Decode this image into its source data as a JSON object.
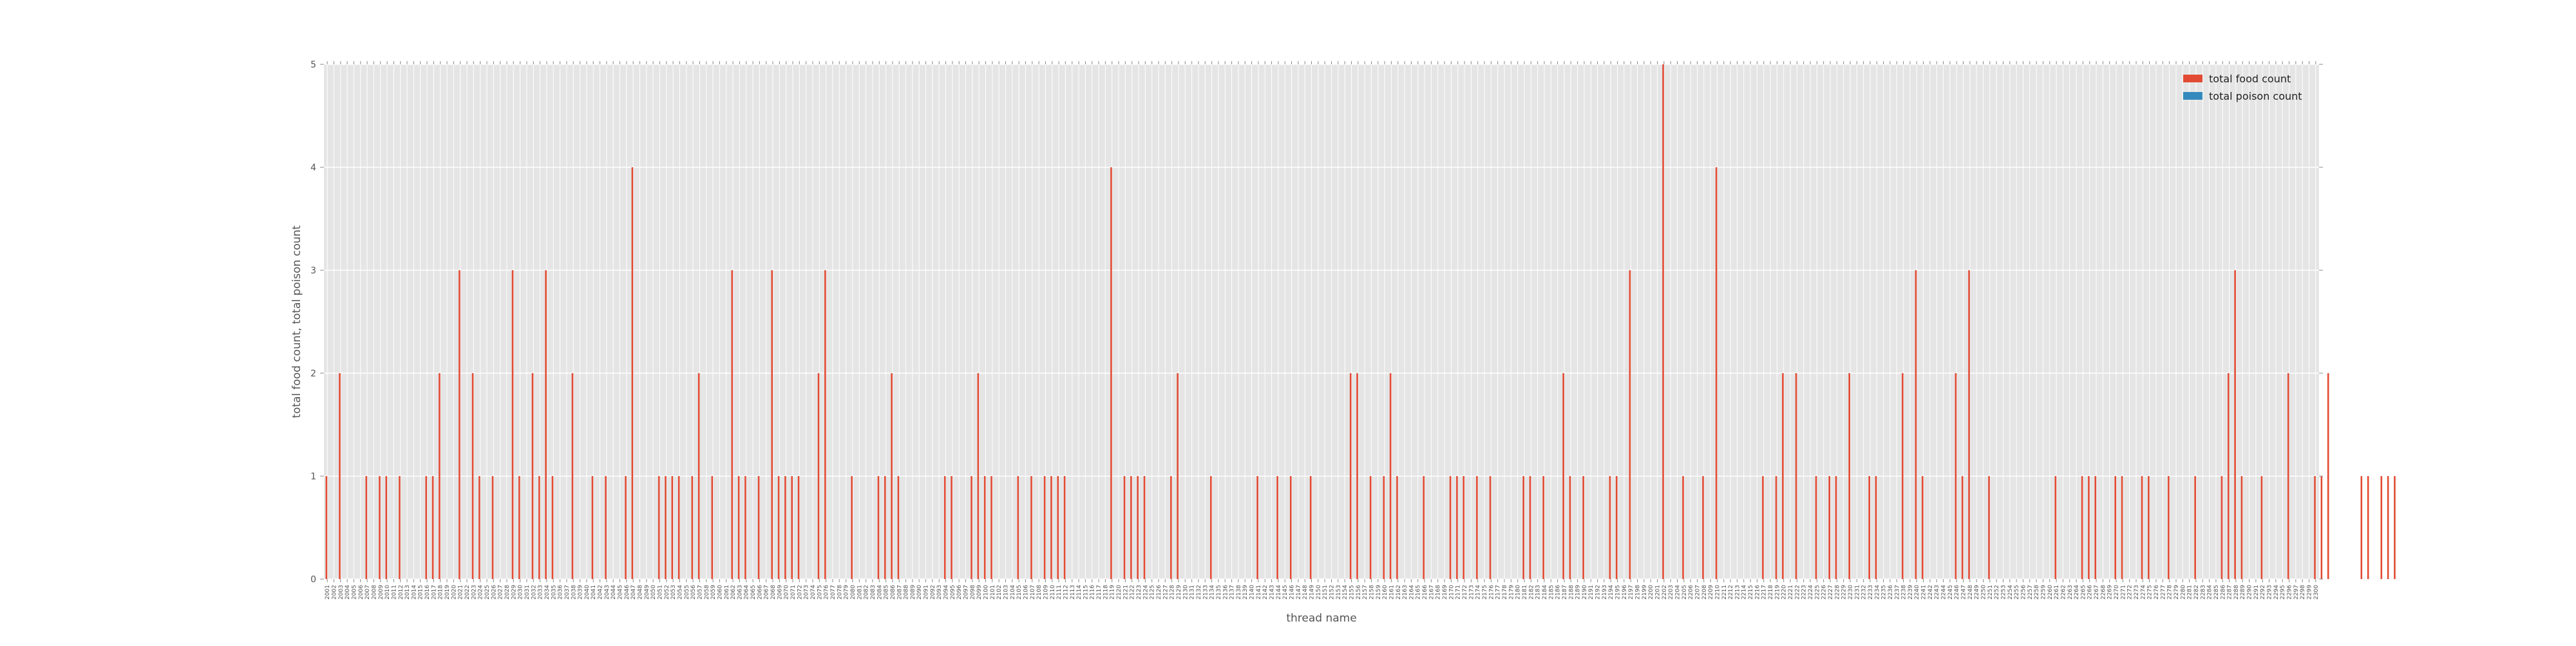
{
  "chart_data": {
    "type": "bar",
    "xlabel": "thread name",
    "ylabel": "total food count, total poison count",
    "ylim": [
      0,
      5
    ],
    "yticks": [
      0,
      1,
      2,
      3,
      4,
      5
    ],
    "grid": true,
    "legend_position": "top-right",
    "colors": {
      "plot_background": "#e5e5e5",
      "grid": "#ffffff",
      "food": "#e24a33",
      "poison": "#348abd"
    },
    "category_start": 2001,
    "category_count": 300,
    "series": [
      {
        "name": "total food count",
        "color": "#e24a33",
        "values": [
          1,
          0,
          2,
          0,
          0,
          0,
          1,
          0,
          1,
          1,
          0,
          1,
          0,
          0,
          0,
          1,
          1,
          2,
          0,
          0,
          3,
          0,
          2,
          1,
          0,
          1,
          0,
          0,
          3,
          1,
          0,
          2,
          1,
          3,
          1,
          0,
          0,
          2,
          0,
          0,
          1,
          0,
          1,
          0,
          0,
          1,
          4,
          0,
          0,
          0,
          1,
          1,
          1,
          1,
          0,
          1,
          2,
          0,
          1,
          0,
          0,
          3,
          1,
          1,
          0,
          1,
          0,
          3,
          1,
          1,
          1,
          1,
          0,
          0,
          2,
          3,
          0,
          0,
          0,
          1,
          0,
          0,
          0,
          1,
          1,
          2,
          1,
          0,
          0,
          0,
          0,
          0,
          0,
          1,
          1,
          0,
          0,
          1,
          2,
          1,
          1,
          0,
          0,
          0,
          1,
          0,
          1,
          0,
          1,
          1,
          1,
          1,
          0,
          0,
          0,
          0,
          0,
          0,
          4,
          0,
          1,
          1,
          1,
          1,
          0,
          0,
          0,
          1,
          2,
          0,
          0,
          0,
          0,
          1,
          0,
          0,
          0,
          0,
          0,
          0,
          1,
          0,
          0,
          1,
          0,
          1,
          0,
          0,
          1,
          0,
          0,
          0,
          0,
          0,
          2,
          2,
          0,
          1,
          0,
          1,
          2,
          1,
          0,
          0,
          0,
          1,
          0,
          0,
          0,
          1,
          1,
          1,
          0,
          1,
          0,
          1,
          0,
          0,
          0,
          0,
          1,
          1,
          0,
          1,
          0,
          0,
          2,
          1,
          0,
          1,
          0,
          0,
          0,
          1,
          1,
          0,
          3,
          0,
          0,
          0,
          0,
          5,
          0,
          0,
          1,
          0,
          0,
          1,
          0,
          4,
          0,
          0,
          0,
          0,
          0,
          0,
          1,
          0,
          1,
          2,
          0,
          2,
          0,
          0,
          1,
          0,
          1,
          1,
          0,
          2,
          0,
          0,
          1,
          1,
          0,
          0,
          0,
          2,
          0,
          3,
          1,
          0,
          0,
          0,
          0,
          2,
          1,
          3,
          0,
          0,
          1,
          0,
          0,
          0,
          0,
          0,
          0,
          0,
          0,
          0,
          1,
          0,
          0,
          0,
          1,
          1,
          1,
          0,
          0,
          1,
          1,
          0,
          0,
          1,
          1,
          0,
          0,
          1,
          0,
          0,
          0,
          1,
          0,
          0,
          0,
          1,
          2,
          3,
          1,
          0,
          0,
          1,
          0,
          0,
          0,
          2,
          0,
          0,
          0,
          1,
          1,
          2,
          0,
          0,
          0,
          0,
          1,
          1,
          0,
          1,
          1,
          1
        ]
      },
      {
        "name": "total poison count",
        "color": "#348abd",
        "values": [
          0,
          0,
          0,
          0,
          0,
          0,
          0,
          0,
          0,
          0,
          0,
          0,
          0,
          0,
          0,
          0,
          0,
          0,
          0,
          0,
          0,
          0,
          0,
          0,
          0,
          0,
          0,
          0,
          0,
          0,
          0,
          0,
          0,
          0,
          0,
          0,
          0,
          0,
          0,
          0,
          0,
          0,
          0,
          0,
          0,
          0,
          0,
          0,
          0,
          0,
          0,
          0,
          0,
          0,
          0,
          0,
          0,
          0,
          0,
          0,
          0,
          0,
          0,
          0,
          0,
          0,
          0,
          0,
          0,
          0,
          0,
          0,
          0,
          0,
          0,
          0,
          0,
          0,
          0,
          0,
          0,
          0,
          0,
          0,
          0,
          0,
          0,
          0,
          0,
          0,
          0,
          0,
          0,
          0,
          0,
          0,
          0,
          0,
          0,
          0,
          0,
          0,
          0,
          0,
          0,
          0,
          0,
          0,
          0,
          0,
          0,
          0,
          0,
          0,
          0,
          0,
          0,
          0,
          0,
          0,
          0,
          0,
          0,
          0,
          0,
          0,
          0,
          0,
          0,
          0,
          0,
          0,
          0,
          0,
          0,
          0,
          0,
          0,
          0,
          0,
          0,
          0,
          0,
          0,
          0,
          0,
          0,
          0,
          0,
          0,
          0,
          0,
          0,
          0,
          0,
          0,
          0,
          0,
          0,
          0,
          0,
          0,
          0,
          0,
          0,
          0,
          0,
          0,
          0,
          0,
          0,
          0,
          0,
          0,
          0,
          0,
          0,
          0,
          0,
          0,
          0,
          0,
          0,
          0,
          0,
          0,
          0,
          0,
          0,
          0,
          0,
          0,
          0,
          0,
          0,
          0,
          0,
          0,
          0,
          0,
          0,
          0,
          0,
          0,
          0,
          0,
          0,
          0,
          0,
          0,
          0,
          0,
          0,
          0,
          0,
          0,
          0,
          0,
          0,
          0,
          0,
          0,
          0,
          0,
          0,
          0,
          0,
          0,
          0,
          0,
          0,
          0,
          0,
          0,
          0,
          0,
          0,
          0,
          0,
          0,
          0,
          0,
          0,
          0,
          0,
          0,
          0,
          0,
          0,
          0,
          0,
          0,
          0,
          0,
          0,
          0,
          0,
          0,
          0,
          0,
          0,
          0,
          0,
          0,
          0,
          0,
          0,
          0,
          0,
          0,
          0,
          0,
          0,
          0,
          0,
          0,
          0,
          0,
          0,
          0,
          0,
          0,
          0,
          0,
          0,
          0,
          0,
          0,
          0,
          0,
          0,
          0,
          0,
          0,
          0,
          0,
          0,
          0,
          0,
          0,
          0,
          0,
          0,
          0,
          0,
          0,
          0,
          0,
          0,
          0,
          0,
          0,
          0,
          0,
          0,
          0,
          0,
          0
        ]
      }
    ]
  }
}
